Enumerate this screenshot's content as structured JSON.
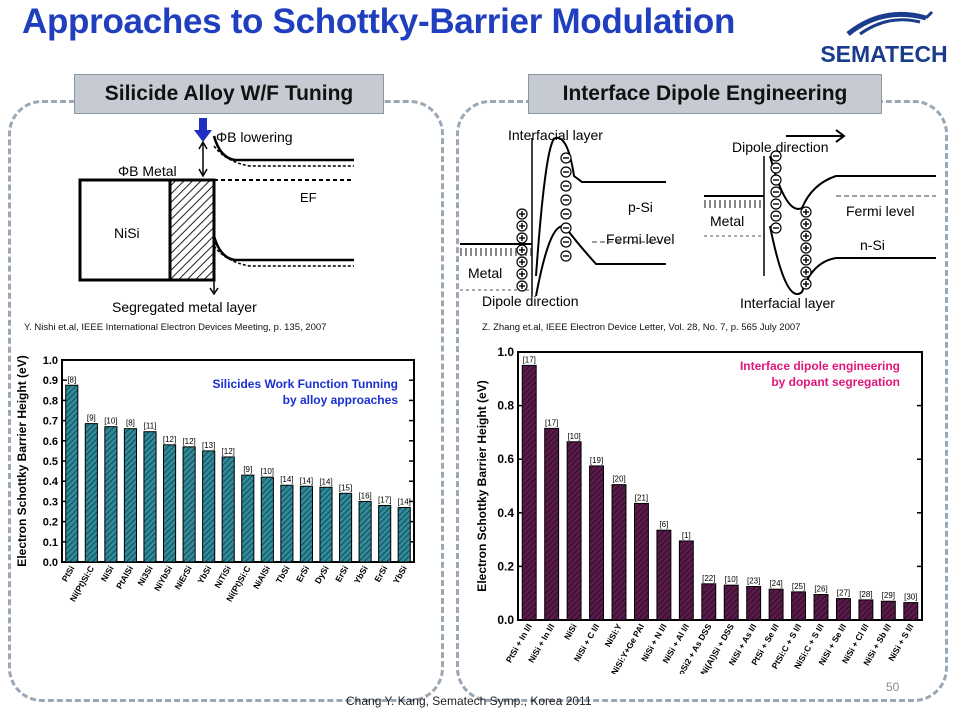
{
  "slide": {
    "title": "Approaches to Schottky-Barrier Modulation",
    "logo_text": "SEMATECH",
    "footer": "Chang Y. Kang, Sematech Symp., Korea 2011",
    "page_number": "50",
    "colors": {
      "title": "#1f3fbf",
      "logo": "#1a3c8c",
      "left_bars": "#2f8b9a",
      "right_bars": "#5a1a4a"
    }
  },
  "left_panel": {
    "header": "Silicide Alloy W/F Tuning",
    "citation": "Y. Nishi et.al, IEEE International Electron Devices Meeting, p. 135, 2007",
    "diagram": {
      "phib_lowering": "ΦB lowering",
      "phib_metal": "ΦB Metal",
      "ef": "EF",
      "nisi": "NiSi",
      "segregated": "Segregated metal layer"
    }
  },
  "right_panel": {
    "header": "Interface Dipole Engineering",
    "citation": "Z. Zhang et.al, IEEE Electron Device Letter, Vol. 28, No. 7, p. 565 July 2007",
    "diagram": {
      "interfacial_layer_a": "Interfacial layer",
      "p_si": "p-Si",
      "fermi_level_a": "Fermi level",
      "metal_a": "Metal",
      "dipole_direction_a": "Dipole direction",
      "dipole_direction_b": "Dipole direction",
      "metal_b": "Metal",
      "fermi_level_b": "Fermi level",
      "n_si": "n-Si",
      "interfacial_layer_b": "Interfacial layer"
    }
  },
  "chart_data": [
    {
      "type": "bar",
      "annotation": [
        "Silicides Work Function Tunning",
        "by alloy approaches"
      ],
      "ylabel": "Electron Schottky Barrier Height (eV)",
      "ylim": [
        0.0,
        1.0
      ],
      "yticks": [
        "0.0",
        "0.1",
        "0.2",
        "0.3",
        "0.4",
        "0.5",
        "0.6",
        "0.7",
        "0.8",
        "0.9",
        "1.0"
      ],
      "categories": [
        "PtSi",
        "Ni(Pt)Si:C",
        "NiSi",
        "PtAlSi",
        "Ni3Si",
        "NiYbSi",
        "NiErSi",
        "YbSi",
        "NiTiSi",
        "Ni(Pt)Si:C",
        "NiAlSi",
        "TbSi",
        "ErSi",
        "DySi",
        "ErSi",
        "YbSi",
        "ErSi",
        "YbSi"
      ],
      "values": [
        0.875,
        0.685,
        0.67,
        0.66,
        0.645,
        0.58,
        0.57,
        0.55,
        0.52,
        0.43,
        0.42,
        0.38,
        0.375,
        0.37,
        0.34,
        0.3,
        0.28,
        0.27
      ],
      "refs": [
        "[8]",
        "[9]",
        "[10]",
        "[8]",
        "[11]",
        "[12]",
        "[12]",
        "[13]",
        "[12]",
        "[9]",
        "[10]",
        "[14]",
        "[14]",
        "[14]",
        "[15]",
        "[16]",
        "[17]",
        "[14]"
      ],
      "grid": false
    },
    {
      "type": "bar",
      "annotation": [
        "Interface dipole engineering",
        "by dopant segregation"
      ],
      "ylabel": "Electron Schottky Barrier Height (eV)",
      "ylim": [
        0.0,
        1.0
      ],
      "yticks": [
        "0.0",
        "0.2",
        "0.4",
        "0.6",
        "0.8",
        "1.0"
      ],
      "categories": [
        "PtSi + In I/I",
        "NiSi + In I/I",
        "NiSi",
        "NiSi + C I/I",
        "NiSi:Y",
        "NiSi:Y+Ge PAI",
        "NiSi + N I/I",
        "NiSi + Al I/I",
        "CoSi2 + As DSS",
        "Ni(Al)Si + DSS",
        "NiSi + As I/I",
        "PtSi + Se I/I",
        "PtSi:C + S I/I",
        "NiSi:C + S I/I",
        "NiSi + Se I/I",
        "NiSi + Cl I/I",
        "NiSi + Sb I/I",
        "NiSi + S I/I"
      ],
      "values": [
        0.95,
        0.715,
        0.665,
        0.575,
        0.505,
        0.435,
        0.335,
        0.295,
        0.135,
        0.13,
        0.125,
        0.115,
        0.105,
        0.095,
        0.08,
        0.075,
        0.07,
        0.065
      ],
      "refs": [
        "[17]",
        "[17]",
        "[10]",
        "[19]",
        "[20]",
        "[21]",
        "[6]",
        "[1]",
        "[22]",
        "[10]",
        "[23]",
        "[24]",
        "[25]",
        "[26]",
        "[27]",
        "[28]",
        "[29]",
        "[30]"
      ],
      "grid": false
    }
  ]
}
